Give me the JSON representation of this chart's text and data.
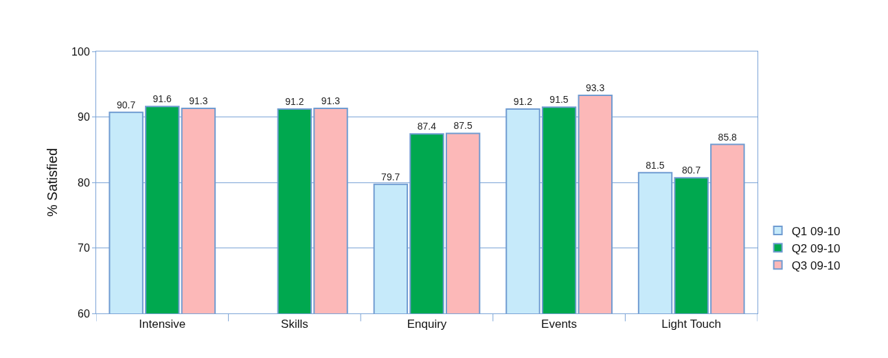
{
  "chart_data": {
    "type": "bar",
    "ylabel": "% Satisfied",
    "categories": [
      "Intensive",
      "Skills",
      "Enquiry",
      "Events",
      "Light Touch"
    ],
    "series": [
      {
        "name": "Q1 09-10",
        "color": "#c6eafa",
        "values": [
          90.7,
          null,
          79.7,
          91.2,
          81.5
        ]
      },
      {
        "name": "Q2 09-10",
        "color": "#00a84f",
        "values": [
          91.6,
          91.2,
          87.4,
          91.5,
          80.7
        ]
      },
      {
        "name": "Q3 09-10",
        "color": "#fcb8b8",
        "values": [
          91.3,
          91.3,
          87.5,
          93.3,
          85.8
        ]
      }
    ],
    "ylim": [
      60,
      100
    ],
    "yticks": [
      60,
      70,
      80,
      90,
      100
    ],
    "grid": "y",
    "legend": "right",
    "data_labels": true
  }
}
